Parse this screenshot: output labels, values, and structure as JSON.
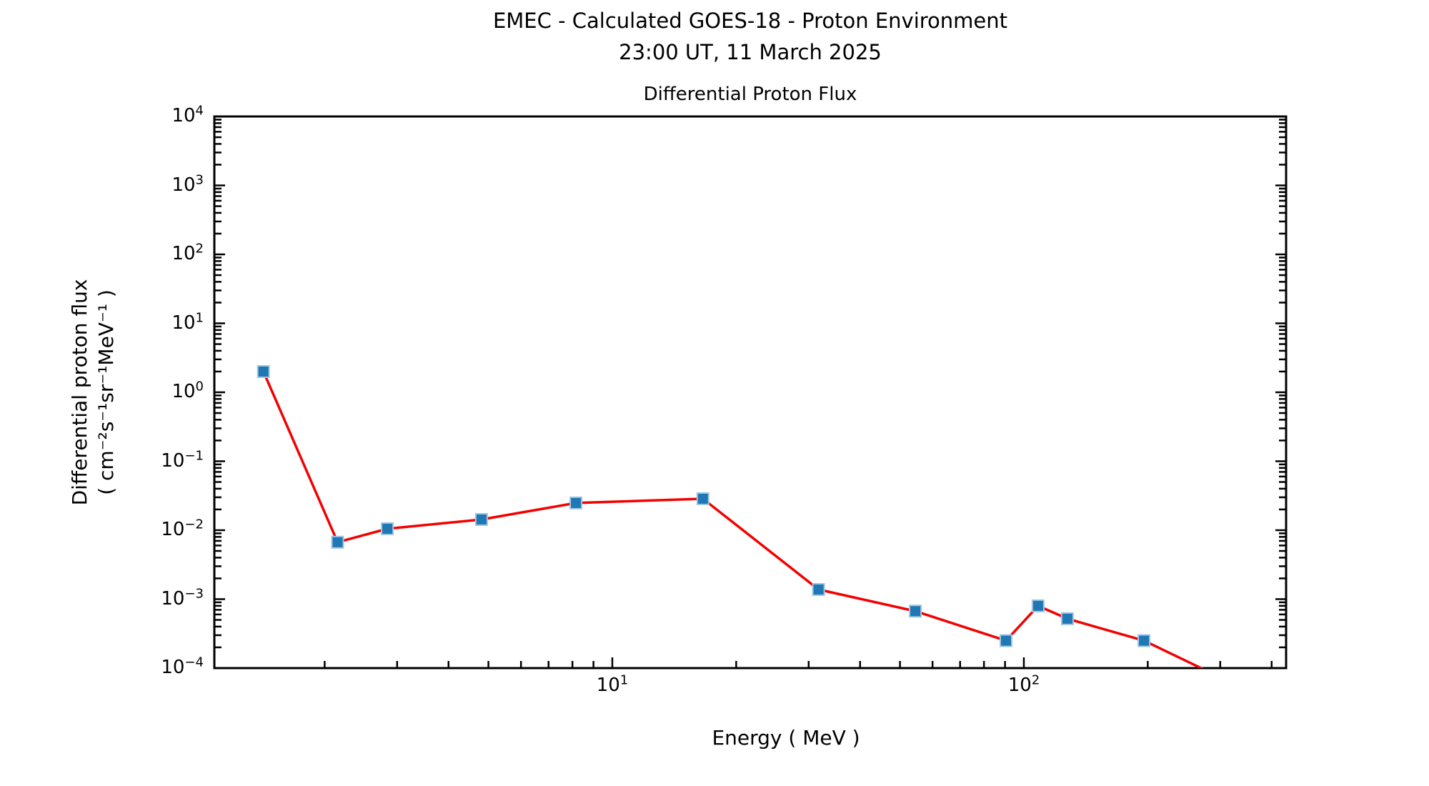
{
  "figure": {
    "title_line1": "EMEC - Calculated GOES-18 - Proton Environment",
    "title_line2": "23:00 UT, 11 March 2025"
  },
  "chart_data": {
    "type": "line",
    "title": "Differential Proton Flux",
    "xlabel": "Energy ( MeV )",
    "ylabel_line1": "Differential proton flux",
    "ylabel_line2": "( cm⁻²s⁻¹sr⁻¹MeV⁻¹ )",
    "x_scale": "log",
    "y_scale": "log",
    "xlim": [
      1.079,
      433.7
    ],
    "ylim": [
      0.0001,
      10000
    ],
    "x_major_exponents": [
      1,
      2
    ],
    "y_major_exponents": [
      4,
      3,
      2,
      1,
      0,
      -1,
      -2,
      -3,
      -4
    ],
    "grid": false,
    "legend": "none",
    "axis_color": "#000000",
    "series": [
      {
        "name": "Differential proton flux",
        "line_color": "#f40000",
        "line_width": 3.5,
        "marker": "square",
        "marker_size": 16,
        "marker_color": "#1f77b4",
        "marker_edge_color": "#9fc6e2",
        "x": [
          1.42,
          2.15,
          2.84,
          4.81,
          8.16,
          16.6,
          31.7,
          54.5,
          90.5,
          108.3,
          127.6,
          195.8,
          334
        ],
        "y": [
          2.0,
          0.0067,
          0.0105,
          0.0143,
          0.0248,
          0.0286,
          0.00138,
          0.00067,
          0.00025,
          0.0008,
          0.00052,
          0.00025,
          5.4e-05
        ]
      }
    ]
  }
}
